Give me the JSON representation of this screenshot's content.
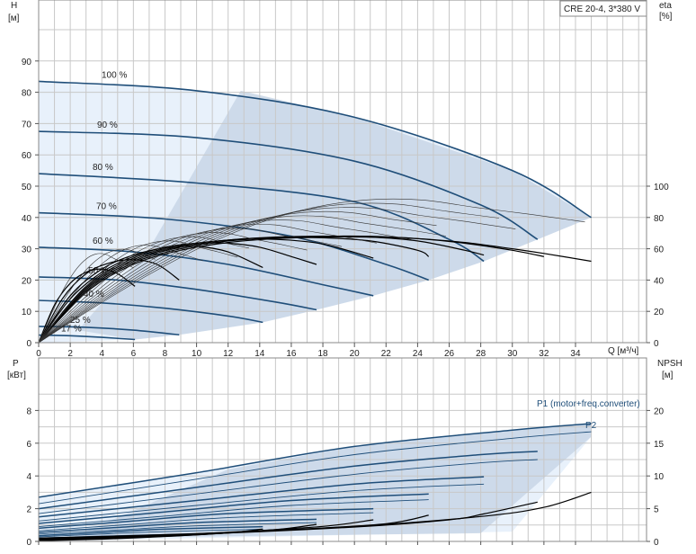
{
  "chart_data": [
    {
      "type": "line",
      "id": "performance",
      "model_box": "CRE 20-4, 3*380 V",
      "ylabel_left_name": "H",
      "ylabel_left_unit": "[м]",
      "ylabel_right_name": "eta",
      "ylabel_right_unit": "[%]",
      "xlabel": "Q [м³/ч]",
      "xlim": [
        0,
        38.5
      ],
      "ylim": [
        0,
        100
      ],
      "eta_ylim": [
        0,
        200
      ],
      "x_ticks": [
        "0",
        "2",
        "4",
        "6",
        "8",
        "10",
        "12",
        "14",
        "16",
        "18",
        "20",
        "22",
        "24",
        "26",
        "28",
        "30",
        "32",
        "34"
      ],
      "y_ticks": [
        "0",
        "10",
        "20",
        "30",
        "40",
        "50",
        "60",
        "70",
        "80",
        "90"
      ],
      "eta_ticks": [
        "0",
        "20",
        "40",
        "60",
        "80",
        "100"
      ],
      "grid": true,
      "colors": {
        "head": "#1f4e79",
        "eta": "#000000",
        "envelope": "#c8d6e6",
        "light": "#e8f1fb"
      },
      "head_series": [
        {
          "label": "100 %",
          "x": [
            0,
            10,
            20,
            30,
            35
          ],
          "y": [
            83.5,
            80.5,
            72,
            55,
            40
          ]
        },
        {
          "label": "90 %",
          "x": [
            0,
            10,
            20,
            28,
            31.6
          ],
          "y": [
            67.5,
            65.5,
            58,
            44,
            33
          ]
        },
        {
          "label": "80 %",
          "x": [
            0,
            10,
            20,
            26,
            28.2
          ],
          "y": [
            54,
            51,
            45,
            33,
            26
          ]
        },
        {
          "label": "70 %",
          "x": [
            0,
            8,
            16,
            22,
            24.7
          ],
          "y": [
            41.5,
            39.5,
            34,
            25,
            20
          ]
        },
        {
          "label": "60 %",
          "x": [
            0,
            6,
            12,
            18,
            21.2
          ],
          "y": [
            30.5,
            29,
            25,
            18.5,
            15
          ]
        },
        {
          "label": "50 %",
          "x": [
            0,
            5,
            10,
            15,
            17.6
          ],
          "y": [
            21,
            20,
            17,
            13,
            10.5
          ]
        },
        {
          "label": "40 %",
          "x": [
            0,
            4,
            8,
            12,
            14.2
          ],
          "y": [
            13.5,
            12.7,
            11,
            8.5,
            6.5
          ]
        },
        {
          "label": "25 %",
          "x": [
            0,
            3,
            6,
            8.9
          ],
          "y": [
            5.2,
            4.9,
            4,
            2.5
          ]
        },
        {
          "label": "17 %",
          "x": [
            0,
            2,
            4,
            6.1
          ],
          "y": [
            2.4,
            2.2,
            1.7,
            1
          ]
        }
      ],
      "eta_series": [
        {
          "x": [
            0,
            3,
            6,
            9,
            12,
            15,
            18,
            21,
            24,
            27,
            30,
            32,
            35
          ],
          "y": [
            0,
            32,
            50,
            59,
            64,
            66.5,
            67.5,
            67.5,
            66.5,
            64,
            60,
            57,
            52
          ]
        },
        {
          "x": [
            0,
            3,
            6,
            9,
            12,
            15,
            18,
            21,
            24,
            27,
            30,
            32
          ],
          "y": [
            0,
            33,
            51,
            60,
            65,
            67,
            68,
            68,
            66.5,
            63.5,
            59,
            55
          ]
        },
        {
          "x": [
            0,
            3,
            6,
            9,
            12,
            15,
            18,
            21,
            24,
            27,
            28.2
          ],
          "y": [
            0,
            34,
            52,
            61,
            65.5,
            67.5,
            68,
            67.5,
            65,
            59,
            56
          ]
        },
        {
          "x": [
            0,
            3,
            6,
            9,
            12,
            15,
            18,
            21,
            24,
            24.7
          ],
          "y": [
            0,
            35,
            53,
            61.5,
            65.5,
            67,
            67,
            65,
            59,
            55
          ]
        },
        {
          "x": [
            0,
            3,
            6,
            9,
            12,
            15,
            18,
            21.2
          ],
          "y": [
            0,
            36,
            54,
            62,
            65.5,
            66,
            63,
            54
          ]
        },
        {
          "x": [
            0,
            2,
            4,
            6,
            8,
            10,
            12,
            14,
            16,
            17.6
          ],
          "y": [
            0,
            28,
            45,
            55,
            61,
            63.5,
            63.5,
            61,
            55,
            50
          ]
        },
        {
          "x": [
            0,
            2,
            4,
            6,
            8,
            10,
            12,
            14.2
          ],
          "y": [
            0,
            30,
            47,
            56,
            60.5,
            61.5,
            58,
            48
          ]
        },
        {
          "x": [
            0,
            1.5,
            3,
            4.5,
            6,
            7.5,
            8.9
          ],
          "y": [
            0,
            28,
            44,
            51,
            53,
            50,
            40
          ]
        },
        {
          "x": [
            0,
            1,
            2,
            3,
            4,
            5,
            6.1
          ],
          "y": [
            0,
            24,
            38,
            45,
            47,
            44,
            36
          ]
        }
      ],
      "label_text": [
        "100 %",
        "90 %",
        "80 %",
        "70 %",
        "60 %",
        "50 %",
        "40 %",
        "25 %",
        "17 %"
      ]
    },
    {
      "type": "line",
      "id": "power",
      "ylabel_left_name": "P",
      "ylabel_left_unit": "[кВт]",
      "ylabel_right_name": "NPSH",
      "ylabel_right_unit": "[м]",
      "xlim": [
        0,
        38.5
      ],
      "ylim": [
        0,
        10
      ],
      "npsh_ylim": [
        0,
        25
      ],
      "y_ticks": [
        "0",
        "2",
        "4",
        "6",
        "8"
      ],
      "npsh_ticks": [
        "0",
        "5",
        "10",
        "15",
        "20"
      ],
      "grid": true,
      "p1_label": "P1 (motor+freq.converter)",
      "p2_label": "P2",
      "p1_series": [
        {
          "x": [
            0,
            10,
            20,
            30,
            35
          ],
          "y": [
            2.7,
            4.2,
            5.8,
            6.8,
            7.2
          ]
        },
        {
          "x": [
            0,
            10,
            20,
            28,
            31.6
          ],
          "y": [
            2.0,
            3.3,
            4.6,
            5.3,
            5.5
          ]
        },
        {
          "x": [
            0,
            10,
            20,
            28.2
          ],
          "y": [
            1.5,
            2.5,
            3.5,
            3.95
          ]
        },
        {
          "x": [
            0,
            8,
            16,
            24.7
          ],
          "y": [
            1.1,
            1.8,
            2.5,
            2.9
          ]
        },
        {
          "x": [
            0,
            6,
            12,
            21.2
          ],
          "y": [
            0.8,
            1.25,
            1.7,
            2.0
          ]
        },
        {
          "x": [
            0,
            5,
            10,
            17.6
          ],
          "y": [
            0.55,
            0.85,
            1.15,
            1.35
          ]
        },
        {
          "x": [
            0,
            4,
            8,
            14.2
          ],
          "y": [
            0.35,
            0.55,
            0.75,
            0.9
          ]
        },
        {
          "x": [
            0,
            3,
            6,
            8.9
          ],
          "y": [
            0.2,
            0.28,
            0.36,
            0.42
          ]
        },
        {
          "x": [
            0,
            2,
            4,
            6.1
          ],
          "y": [
            0.12,
            0.16,
            0.2,
            0.24
          ]
        }
      ],
      "p2_series": [
        {
          "x": [
            0,
            10,
            20,
            30,
            35
          ],
          "y": [
            2.3,
            3.8,
            5.3,
            6.3,
            6.7
          ]
        },
        {
          "x": [
            0,
            10,
            20,
            28,
            31.6
          ],
          "y": [
            1.7,
            2.9,
            4.1,
            4.8,
            5.0
          ]
        },
        {
          "x": [
            0,
            10,
            20,
            28.2
          ],
          "y": [
            1.25,
            2.2,
            3.1,
            3.5
          ]
        },
        {
          "x": [
            0,
            8,
            16,
            24.7
          ],
          "y": [
            0.9,
            1.55,
            2.2,
            2.55
          ]
        },
        {
          "x": [
            0,
            6,
            12,
            21.2
          ],
          "y": [
            0.65,
            1.05,
            1.45,
            1.75
          ]
        },
        {
          "x": [
            0,
            5,
            10,
            17.6
          ],
          "y": [
            0.45,
            0.7,
            0.95,
            1.15
          ]
        },
        {
          "x": [
            0,
            4,
            8,
            14.2
          ],
          "y": [
            0.28,
            0.45,
            0.6,
            0.75
          ]
        }
      ],
      "npsh_series": [
        {
          "x": [
            0,
            10,
            20,
            28,
            32,
            35
          ],
          "y": [
            0.5,
            1.2,
            2.3,
            3.8,
            5.2,
            7.5
          ]
        },
        {
          "x": [
            0,
            10,
            20,
            26,
            28.2,
            31.6
          ],
          "y": [
            0.4,
            1.1,
            2.2,
            3.3,
            4.2,
            6.0
          ]
        },
        {
          "x": [
            0,
            8,
            16,
            22,
            24.7
          ],
          "y": [
            0.3,
            0.9,
            1.8,
            2.7,
            4.0
          ]
        },
        {
          "x": [
            0,
            6,
            12,
            18,
            21.2
          ],
          "y": [
            0.2,
            0.7,
            1.4,
            2.3,
            3.3
          ]
        },
        {
          "x": [
            0,
            5,
            10,
            15,
            17.6
          ],
          "y": [
            0.15,
            0.5,
            1.0,
            1.8,
            2.6
          ]
        },
        {
          "x": [
            0,
            4,
            8,
            12,
            14.2
          ],
          "y": [
            0.1,
            0.35,
            0.75,
            1.3,
            1.9
          ]
        }
      ]
    }
  ]
}
